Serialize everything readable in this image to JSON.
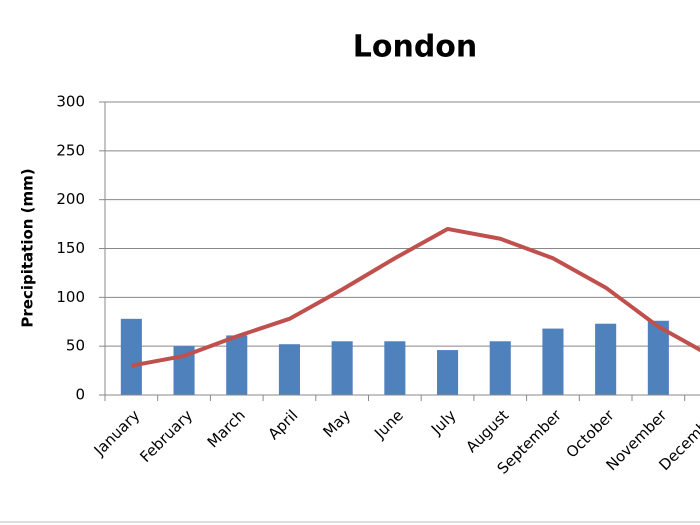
{
  "chart_data": {
    "type": "bar",
    "title": "London",
    "y_label": "Precipitation (mm)",
    "categories": [
      "January",
      "February",
      "March",
      "April",
      "May",
      "June",
      "July",
      "August",
      "September",
      "October",
      "November",
      "December"
    ],
    "series": [
      {
        "type": "bar",
        "color": "#4f81bd",
        "values": [
          78,
          50,
          61,
          52,
          55,
          55,
          46,
          55,
          68,
          73,
          76,
          null
        ]
      },
      {
        "type": "line",
        "color": "#c0504d",
        "values": [
          30,
          40,
          60,
          78,
          108,
          140,
          170,
          160,
          140,
          110,
          70,
          40
        ]
      }
    ],
    "ylim": [
      0,
      300
    ],
    "yticks": [
      0,
      50,
      100,
      150,
      200,
      250,
      300
    ],
    "grid": true
  }
}
